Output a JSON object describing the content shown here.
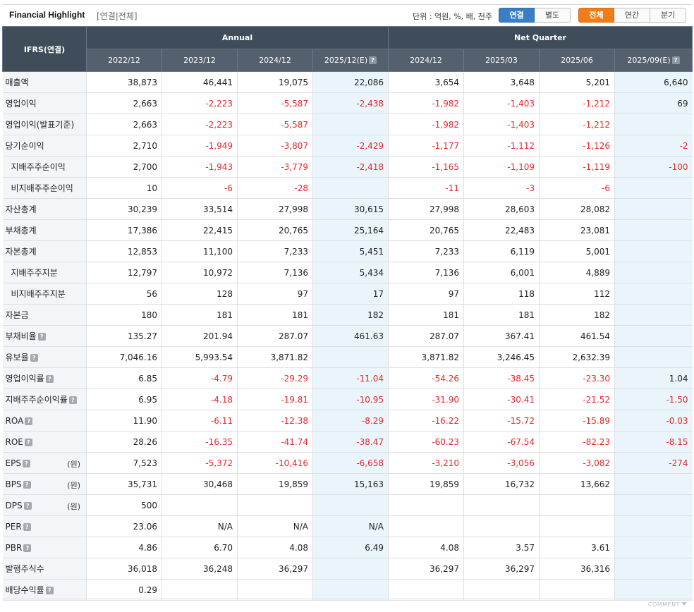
{
  "header": {
    "title": "Financial Highlight",
    "subtitle": "[연결|전체]",
    "unit_text": "단위 : 억원, %, 배, 천주",
    "consolidation_buttons": [
      {
        "label": "연결",
        "active": true
      },
      {
        "label": "별도",
        "active": false
      }
    ],
    "period_buttons": [
      {
        "label": "전체",
        "active": true
      },
      {
        "label": "연간",
        "active": false
      },
      {
        "label": "분기",
        "active": false
      }
    ]
  },
  "table": {
    "corner_label": "IFRS(연결)",
    "group_headers": [
      "Annual",
      "Net Quarter"
    ],
    "columns": [
      {
        "label": "2022/12",
        "estimate": false
      },
      {
        "label": "2023/12",
        "estimate": false
      },
      {
        "label": "2024/12",
        "estimate": false
      },
      {
        "label": "2025/12(E)",
        "estimate": true
      },
      {
        "label": "2024/12",
        "estimate": false
      },
      {
        "label": "2025/03",
        "estimate": false
      },
      {
        "label": "2025/06",
        "estimate": false
      },
      {
        "label": "2025/09(E)",
        "estimate": true
      }
    ],
    "rows": [
      {
        "label": "매출액",
        "indent": false,
        "help": false,
        "unit": "",
        "values": [
          "38,873",
          "46,441",
          "19,075",
          "22,086",
          "3,654",
          "3,648",
          "5,201",
          "6,640"
        ]
      },
      {
        "label": "영업이익",
        "indent": false,
        "help": false,
        "unit": "",
        "values": [
          "2,663",
          "-2,223",
          "-5,587",
          "-2,438",
          "-1,982",
          "-1,403",
          "-1,212",
          "69"
        ]
      },
      {
        "label": "영업이익(발표기준)",
        "indent": false,
        "help": false,
        "unit": "",
        "values": [
          "2,663",
          "-2,223",
          "-5,587",
          "",
          "-1,982",
          "-1,403",
          "-1,212",
          ""
        ]
      },
      {
        "label": "당기순이익",
        "indent": false,
        "help": false,
        "unit": "",
        "values": [
          "2,710",
          "-1,949",
          "-3,807",
          "-2,429",
          "-1,177",
          "-1,112",
          "-1,126",
          "-2"
        ]
      },
      {
        "label": "지배주주순이익",
        "indent": true,
        "help": false,
        "unit": "",
        "values": [
          "2,700",
          "-1,943",
          "-3,779",
          "-2,418",
          "-1,165",
          "-1,109",
          "-1,119",
          "-100"
        ]
      },
      {
        "label": "비지배주주순이익",
        "indent": true,
        "help": false,
        "unit": "",
        "values": [
          "10",
          "-6",
          "-28",
          "",
          "-11",
          "-3",
          "-6",
          ""
        ]
      },
      {
        "label": "자산총계",
        "indent": false,
        "help": false,
        "unit": "",
        "values": [
          "30,239",
          "33,514",
          "27,998",
          "30,615",
          "27,998",
          "28,603",
          "28,082",
          ""
        ]
      },
      {
        "label": "부채총계",
        "indent": false,
        "help": false,
        "unit": "",
        "values": [
          "17,386",
          "22,415",
          "20,765",
          "25,164",
          "20,765",
          "22,483",
          "23,081",
          ""
        ]
      },
      {
        "label": "자본총계",
        "indent": false,
        "help": false,
        "unit": "",
        "values": [
          "12,853",
          "11,100",
          "7,233",
          "5,451",
          "7,233",
          "6,119",
          "5,001",
          ""
        ]
      },
      {
        "label": "지배주주지분",
        "indent": true,
        "help": false,
        "unit": "",
        "values": [
          "12,797",
          "10,972",
          "7,136",
          "5,434",
          "7,136",
          "6,001",
          "4,889",
          ""
        ]
      },
      {
        "label": "비지배주주지분",
        "indent": true,
        "help": false,
        "unit": "",
        "values": [
          "56",
          "128",
          "97",
          "17",
          "97",
          "118",
          "112",
          ""
        ]
      },
      {
        "label": "자본금",
        "indent": false,
        "help": false,
        "unit": "",
        "values": [
          "180",
          "181",
          "181",
          "182",
          "181",
          "181",
          "182",
          ""
        ]
      },
      {
        "label": "부채비율",
        "indent": false,
        "help": true,
        "unit": "",
        "values": [
          "135.27",
          "201.94",
          "287.07",
          "461.63",
          "287.07",
          "367.41",
          "461.54",
          ""
        ]
      },
      {
        "label": "유보율",
        "indent": false,
        "help": true,
        "unit": "",
        "values": [
          "7,046.16",
          "5,993.54",
          "3,871.82",
          "",
          "3,871.82",
          "3,246.45",
          "2,632.39",
          ""
        ]
      },
      {
        "label": "영업이익률",
        "indent": false,
        "help": true,
        "unit": "",
        "values": [
          "6.85",
          "-4.79",
          "-29.29",
          "-11.04",
          "-54.26",
          "-38.45",
          "-23.30",
          "1.04"
        ]
      },
      {
        "label": "지배주주순이익률",
        "indent": false,
        "help": true,
        "unit": "",
        "values": [
          "6.95",
          "-4.18",
          "-19.81",
          "-10.95",
          "-31.90",
          "-30.41",
          "-21.52",
          "-1.50"
        ]
      },
      {
        "label": "ROA",
        "indent": false,
        "help": true,
        "unit": "",
        "values": [
          "11.90",
          "-6.11",
          "-12.38",
          "-8.29",
          "-16.22",
          "-15.72",
          "-15.89",
          "-0.03"
        ]
      },
      {
        "label": "ROE",
        "indent": false,
        "help": true,
        "unit": "",
        "values": [
          "28.26",
          "-16.35",
          "-41.74",
          "-38.47",
          "-60.23",
          "-67.54",
          "-82.23",
          "-8.15"
        ]
      },
      {
        "label": "EPS",
        "indent": false,
        "help": true,
        "unit": "(원)",
        "values": [
          "7,523",
          "-5,372",
          "-10,416",
          "-6,658",
          "-3,210",
          "-3,056",
          "-3,082",
          "-274"
        ]
      },
      {
        "label": "BPS",
        "indent": false,
        "help": true,
        "unit": "(원)",
        "values": [
          "35,731",
          "30,468",
          "19,859",
          "15,163",
          "19,859",
          "16,732",
          "13,662",
          ""
        ]
      },
      {
        "label": "DPS",
        "indent": false,
        "help": true,
        "unit": "(원)",
        "values": [
          "500",
          "",
          "",
          "",
          "",
          "",
          "",
          ""
        ]
      },
      {
        "label": "PER",
        "indent": false,
        "help": true,
        "unit": "",
        "values": [
          "23.06",
          "N/A",
          "N/A",
          "N/A",
          "",
          "",
          "",
          ""
        ]
      },
      {
        "label": "PBR",
        "indent": false,
        "help": true,
        "unit": "",
        "values": [
          "4.86",
          "6.70",
          "4.08",
          "6.49",
          "4.08",
          "3.57",
          "3.61",
          ""
        ]
      },
      {
        "label": "발행주식수",
        "indent": false,
        "help": false,
        "unit": "",
        "values": [
          "36,018",
          "36,248",
          "36,297",
          "",
          "36,297",
          "36,297",
          "36,316",
          ""
        ]
      },
      {
        "label": "배당수익률",
        "indent": false,
        "help": true,
        "unit": "",
        "values": [
          "0.29",
          "",
          "",
          "",
          "",
          "",
          "",
          ""
        ]
      }
    ]
  },
  "footer": {
    "comment_label": "COMMENT"
  },
  "colors": {
    "negative": "#e3262c",
    "estimate_bg": "#e9f5fb",
    "header_bg": "#3f4c5a",
    "active_blue": "#3a7fc4",
    "active_orange": "#f07d1a"
  },
  "icons": {
    "help": "question-mark-icon",
    "comment": "chevron-down-icon"
  }
}
